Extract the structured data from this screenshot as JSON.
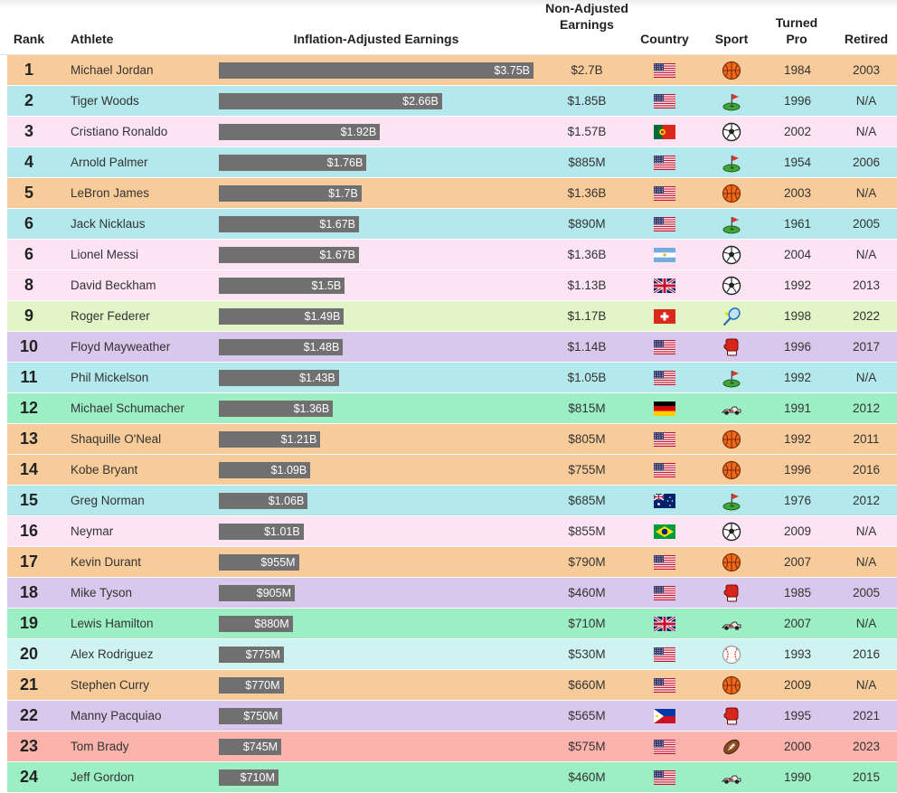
{
  "headers": {
    "rank": "Rank",
    "athlete": "Athlete",
    "inflation": "Inflation-Adjusted Earnings",
    "nonadjusted": "Non-Adjusted Earnings",
    "country": "Country",
    "sport": "Sport",
    "turned_pro": "Turned Pro",
    "retired": "Retired"
  },
  "chart_data": {
    "type": "bar",
    "orientation": "horizontal",
    "value_unit": "USD billions",
    "xlim": [
      0,
      3.75
    ],
    "categories": [
      "Michael Jordan",
      "Tiger Woods",
      "Cristiano Ronaldo",
      "Arnold Palmer",
      "LeBron James",
      "Jack Nicklaus",
      "Lionel Messi",
      "David Beckham",
      "Roger Federer",
      "Floyd Mayweather",
      "Phil Mickelson",
      "Michael Schumacher",
      "Shaquille O'Neal",
      "Kobe Bryant",
      "Greg Norman",
      "Neymar",
      "Kevin Durant",
      "Mike Tyson",
      "Lewis Hamilton",
      "Alex Rodriguez",
      "Stephen Curry",
      "Manny Pacquiao",
      "Tom Brady",
      "Jeff Gordon"
    ],
    "values": [
      3.75,
      2.66,
      1.92,
      1.76,
      1.7,
      1.67,
      1.67,
      1.5,
      1.49,
      1.48,
      1.43,
      1.36,
      1.21,
      1.09,
      1.06,
      1.01,
      0.955,
      0.905,
      0.88,
      0.775,
      0.77,
      0.75,
      0.745,
      0.71
    ]
  },
  "sport_colors": {
    "Basketball": "#f8cc9a",
    "Golf": "#b3e8ec",
    "Soccer": "#fde4f5",
    "Tennis": "#e2f5c6",
    "Boxing": "#d9c8ec",
    "Racing": "#9cefc5",
    "Baseball": "#cff3f2",
    "Football": "#fbb3ab"
  },
  "rows": [
    {
      "rank": "1",
      "name": "Michael Jordan",
      "label": "$3.75B",
      "nonadj": "$2.7B",
      "country": "USA",
      "sport": "Basketball",
      "sport_icon": "basketball-icon",
      "turned": "1984",
      "retired": "2003"
    },
    {
      "rank": "2",
      "name": "Tiger Woods",
      "label": "$2.66B",
      "nonadj": "$1.85B",
      "country": "USA",
      "sport": "Golf",
      "sport_icon": "golf-icon",
      "turned": "1996",
      "retired": "N/A"
    },
    {
      "rank": "3",
      "name": "Cristiano Ronaldo",
      "label": "$1.92B",
      "nonadj": "$1.57B",
      "country": "Portugal",
      "sport": "Soccer",
      "sport_icon": "soccer-icon",
      "turned": "2002",
      "retired": "N/A"
    },
    {
      "rank": "4",
      "name": "Arnold Palmer",
      "label": "$1.76B",
      "nonadj": "$885M",
      "country": "USA",
      "sport": "Golf",
      "sport_icon": "golf-icon",
      "turned": "1954",
      "retired": "2006"
    },
    {
      "rank": "5",
      "name": "LeBron James",
      "label": "$1.7B",
      "nonadj": "$1.36B",
      "country": "USA",
      "sport": "Basketball",
      "sport_icon": "basketball-icon",
      "turned": "2003",
      "retired": "N/A"
    },
    {
      "rank": "6",
      "name": "Jack Nicklaus",
      "label": "$1.67B",
      "nonadj": "$890M",
      "country": "USA",
      "sport": "Golf",
      "sport_icon": "golf-icon",
      "turned": "1961",
      "retired": "2005"
    },
    {
      "rank": "6",
      "name": "Lionel Messi",
      "label": "$1.67B",
      "nonadj": "$1.36B",
      "country": "Argentina",
      "sport": "Soccer",
      "sport_icon": "soccer-icon",
      "turned": "2004",
      "retired": "N/A"
    },
    {
      "rank": "8",
      "name": "David Beckham",
      "label": "$1.5B",
      "nonadj": "$1.13B",
      "country": "UK",
      "sport": "Soccer",
      "sport_icon": "soccer-icon",
      "turned": "1992",
      "retired": "2013"
    },
    {
      "rank": "9",
      "name": "Roger Federer",
      "label": "$1.49B",
      "nonadj": "$1.17B",
      "country": "Switzerland",
      "sport": "Tennis",
      "sport_icon": "tennis-icon",
      "turned": "1998",
      "retired": "2022"
    },
    {
      "rank": "10",
      "name": "Floyd Mayweather",
      "label": "$1.48B",
      "nonadj": "$1.14B",
      "country": "USA",
      "sport": "Boxing",
      "sport_icon": "boxing-glove-icon",
      "turned": "1996",
      "retired": "2017"
    },
    {
      "rank": "11",
      "name": "Phil Mickelson",
      "label": "$1.43B",
      "nonadj": "$1.05B",
      "country": "USA",
      "sport": "Golf",
      "sport_icon": "golf-icon",
      "turned": "1992",
      "retired": "N/A"
    },
    {
      "rank": "12",
      "name": "Michael Schumacher",
      "label": "$1.36B",
      "nonadj": "$815M",
      "country": "Germany",
      "sport": "Racing",
      "sport_icon": "race-car-icon",
      "turned": "1991",
      "retired": "2012"
    },
    {
      "rank": "13",
      "name": "Shaquille O'Neal",
      "label": "$1.21B",
      "nonadj": "$805M",
      "country": "USA",
      "sport": "Basketball",
      "sport_icon": "basketball-icon",
      "turned": "1992",
      "retired": "2011"
    },
    {
      "rank": "14",
      "name": "Kobe Bryant",
      "label": "$1.09B",
      "nonadj": "$755M",
      "country": "USA",
      "sport": "Basketball",
      "sport_icon": "basketball-icon",
      "turned": "1996",
      "retired": "2016"
    },
    {
      "rank": "15",
      "name": "Greg Norman",
      "label": "$1.06B",
      "nonadj": "$685M",
      "country": "Australia",
      "sport": "Golf",
      "sport_icon": "golf-icon",
      "turned": "1976",
      "retired": "2012"
    },
    {
      "rank": "16",
      "name": "Neymar",
      "label": "$1.01B",
      "nonadj": "$855M",
      "country": "Brazil",
      "sport": "Soccer",
      "sport_icon": "soccer-icon",
      "turned": "2009",
      "retired": "N/A"
    },
    {
      "rank": "17",
      "name": "Kevin Durant",
      "label": "$955M",
      "nonadj": "$790M",
      "country": "USA",
      "sport": "Basketball",
      "sport_icon": "basketball-icon",
      "turned": "2007",
      "retired": "N/A"
    },
    {
      "rank": "18",
      "name": "Mike Tyson",
      "label": "$905M",
      "nonadj": "$460M",
      "country": "USA",
      "sport": "Boxing",
      "sport_icon": "boxing-glove-icon",
      "turned": "1985",
      "retired": "2005"
    },
    {
      "rank": "19",
      "name": "Lewis Hamilton",
      "label": "$880M",
      "nonadj": "$710M",
      "country": "UK",
      "sport": "Racing",
      "sport_icon": "race-car-icon",
      "turned": "2007",
      "retired": "N/A"
    },
    {
      "rank": "20",
      "name": "Alex Rodriguez",
      "label": "$775M",
      "nonadj": "$530M",
      "country": "USA",
      "sport": "Baseball",
      "sport_icon": "baseball-icon",
      "turned": "1993",
      "retired": "2016"
    },
    {
      "rank": "21",
      "name": "Stephen Curry",
      "label": "$770M",
      "nonadj": "$660M",
      "country": "USA",
      "sport": "Basketball",
      "sport_icon": "basketball-icon",
      "turned": "2009",
      "retired": "N/A"
    },
    {
      "rank": "22",
      "name": "Manny Pacquiao",
      "label": "$750M",
      "nonadj": "$565M",
      "country": "Philippines",
      "sport": "Boxing",
      "sport_icon": "boxing-glove-icon",
      "turned": "1995",
      "retired": "2021"
    },
    {
      "rank": "23",
      "name": "Tom Brady",
      "label": "$745M",
      "nonadj": "$575M",
      "country": "USA",
      "sport": "Football",
      "sport_icon": "football-icon",
      "turned": "2000",
      "retired": "2023"
    },
    {
      "rank": "24",
      "name": "Jeff Gordon",
      "label": "$710M",
      "nonadj": "$460M",
      "country": "USA",
      "sport": "Racing",
      "sport_icon": "race-car-icon",
      "turned": "1990",
      "retired": "2015"
    }
  ]
}
